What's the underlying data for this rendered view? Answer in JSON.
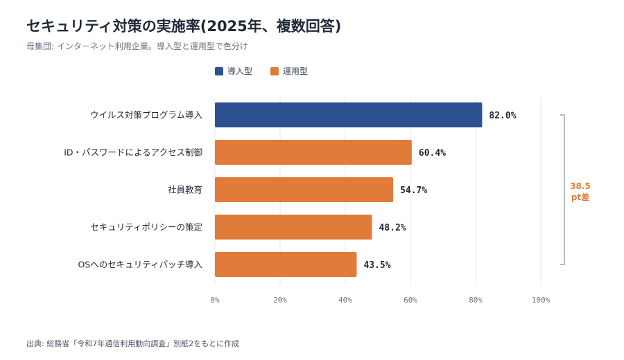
{
  "title": "セキュリティ対策の実施率(2025年、複数回答)",
  "subtitle": "母集団: インターネット利用企業。導入型と運用型で色分け",
  "legend": [
    {
      "label": "導入型",
      "color": "#2d5091"
    },
    {
      "label": "運用型",
      "color": "#e07b39"
    }
  ],
  "source": "出典: 総務省「令和7年通信利用動向調査」別紙2をもとに作成",
  "annotation": {
    "line1": "38.5",
    "line2": "pt差",
    "color": "#e07b39",
    "bracket_color": "#9ca3af"
  },
  "chart_data": {
    "type": "bar",
    "orientation": "horizontal",
    "categories": [
      "ウイルス対策プログラム導入",
      "ID・パスワードによるアクセス制御",
      "社員教育",
      "セキュリティポリシーの策定",
      "OSへのセキュリティパッチ導入"
    ],
    "values": [
      82.0,
      60.4,
      54.7,
      48.2,
      43.5
    ],
    "value_labels": [
      "82.0%",
      "60.4%",
      "54.7%",
      "48.2%",
      "43.5%"
    ],
    "groups": [
      "導入型",
      "運用型",
      "運用型",
      "運用型",
      "運用型"
    ],
    "xlim": [
      0,
      100
    ],
    "xticks": [
      0,
      20,
      40,
      60,
      80,
      100
    ],
    "xtick_labels": [
      "0%",
      "20%",
      "40%",
      "60%",
      "80%",
      "100%"
    ],
    "grid": true,
    "legend_position": "top"
  }
}
